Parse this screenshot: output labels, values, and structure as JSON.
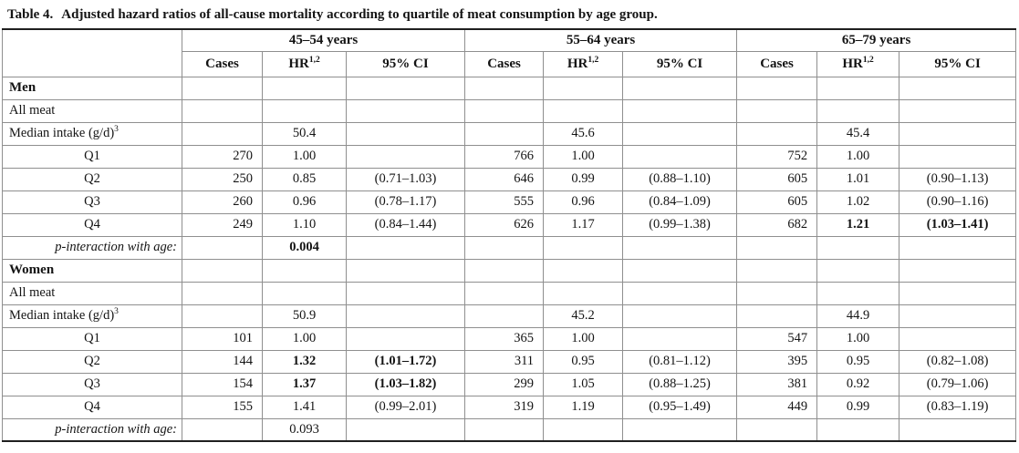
{
  "title": {
    "label": "Table 4.",
    "text": "Adjusted hazard ratios of all-cause mortality according to quartile of meat consumption by age group."
  },
  "table": {
    "groups": [
      {
        "label": "45–54 years"
      },
      {
        "label": "55–64 years"
      },
      {
        "label": "65–79 years"
      }
    ],
    "columns": {
      "cases": "Cases",
      "hr": "HR",
      "hr_sup": "1,2",
      "ci": "95% CI"
    },
    "rows": [
      {
        "label": "Men",
        "type": "section",
        "cells": [
          {},
          {},
          {}
        ]
      },
      {
        "label": "All meat",
        "type": "plain",
        "cells": [
          {},
          {},
          {}
        ]
      },
      {
        "label": "Median intake (g/d)",
        "label_sup": "3",
        "type": "plain",
        "cells": [
          {
            "hr": "50.4"
          },
          {
            "hr": "45.6"
          },
          {
            "hr": "45.4"
          }
        ]
      },
      {
        "label": "Q1",
        "type": "q",
        "cells": [
          {
            "cases": "270",
            "hr": "1.00"
          },
          {
            "cases": "766",
            "hr": "1.00"
          },
          {
            "cases": "752",
            "hr": "1.00"
          }
        ]
      },
      {
        "label": "Q2",
        "type": "q",
        "cells": [
          {
            "cases": "250",
            "hr": "0.85",
            "ci": "(0.71–1.03)"
          },
          {
            "cases": "646",
            "hr": "0.99",
            "ci": "(0.88–1.10)"
          },
          {
            "cases": "605",
            "hr": "1.01",
            "ci": "(0.90–1.13)"
          }
        ]
      },
      {
        "label": "Q3",
        "type": "q",
        "cells": [
          {
            "cases": "260",
            "hr": "0.96",
            "ci": "(0.78–1.17)"
          },
          {
            "cases": "555",
            "hr": "0.96",
            "ci": "(0.84–1.09)"
          },
          {
            "cases": "605",
            "hr": "1.02",
            "ci": "(0.90–1.16)"
          }
        ]
      },
      {
        "label": "Q4",
        "type": "q",
        "cells": [
          {
            "cases": "249",
            "hr": "1.10",
            "ci": "(0.84–1.44)"
          },
          {
            "cases": "626",
            "hr": "1.17",
            "ci": "(0.99–1.38)"
          },
          {
            "cases": "682",
            "hr": "1.21",
            "hr_bold": true,
            "ci": "(1.03–1.41)",
            "ci_bold": true
          }
        ]
      },
      {
        "label": "p-interaction with age:",
        "type": "pint",
        "cells": [
          {
            "hr": "0.004",
            "hr_bold": true
          },
          {},
          {}
        ]
      },
      {
        "label": "Women",
        "type": "section",
        "cells": [
          {},
          {},
          {}
        ]
      },
      {
        "label": "All meat",
        "type": "plain",
        "cells": [
          {},
          {},
          {}
        ]
      },
      {
        "label": "Median intake (g/d)",
        "label_sup": "3",
        "type": "plain",
        "cells": [
          {
            "hr": "50.9"
          },
          {
            "hr": "45.2"
          },
          {
            "hr": "44.9"
          }
        ]
      },
      {
        "label": "Q1",
        "type": "q",
        "cells": [
          {
            "cases": "101",
            "hr": "1.00"
          },
          {
            "cases": "365",
            "hr": "1.00"
          },
          {
            "cases": "547",
            "hr": "1.00"
          }
        ]
      },
      {
        "label": "Q2",
        "type": "q",
        "cells": [
          {
            "cases": "144",
            "hr": "1.32",
            "hr_bold": true,
            "ci": "(1.01–1.72)",
            "ci_bold": true
          },
          {
            "cases": "311",
            "hr": "0.95",
            "ci": "(0.81–1.12)"
          },
          {
            "cases": "395",
            "hr": "0.95",
            "ci": "(0.82–1.08)"
          }
        ]
      },
      {
        "label": "Q3",
        "type": "q",
        "cells": [
          {
            "cases": "154",
            "hr": "1.37",
            "hr_bold": true,
            "ci": "(1.03–1.82)",
            "ci_bold": true
          },
          {
            "cases": "299",
            "hr": "1.05",
            "ci": "(0.88–1.25)"
          },
          {
            "cases": "381",
            "hr": "0.92",
            "ci": "(0.79–1.06)"
          }
        ]
      },
      {
        "label": "Q4",
        "type": "q",
        "cells": [
          {
            "cases": "155",
            "hr": "1.41",
            "ci": "(0.99–2.01)"
          },
          {
            "cases": "319",
            "hr": "1.19",
            "ci": "(0.95–1.49)"
          },
          {
            "cases": "449",
            "hr": "0.99",
            "ci": "(0.83–1.19)"
          }
        ]
      },
      {
        "label": "p-interaction with age:",
        "type": "pint",
        "cells": [
          {
            "hr": "0.093"
          },
          {},
          {}
        ]
      }
    ]
  }
}
